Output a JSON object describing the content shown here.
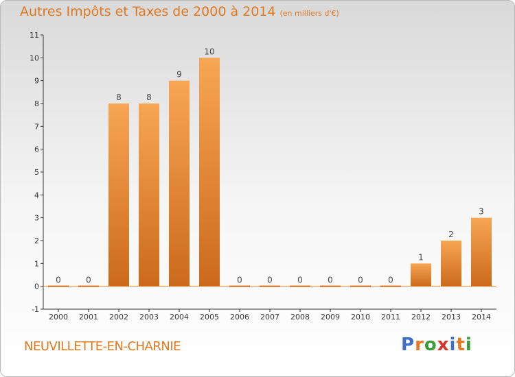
{
  "title": "Autres Impôts et Taxes de 2000 à 2014",
  "unit": "(en milliers d'€)",
  "commune": "NEUVILLETTE-EN-CHARNIE",
  "logo": {
    "letters": [
      "P",
      "r",
      "o",
      "x",
      "i",
      "t",
      "i"
    ],
    "colors": [
      "#3f6fc9",
      "#e87722",
      "#3a9d3a",
      "#d8322f",
      "#3f6fc9",
      "#e87722",
      "#3a9d3a"
    ]
  },
  "colors": {
    "bar": "#e8862e",
    "bar_light": "#f7a654",
    "bar_dark": "#cb6a1a",
    "title": "#e0781e",
    "zero_line": "#e8862e"
  },
  "chart_data": {
    "type": "bar",
    "categories": [
      "2000",
      "2001",
      "2002",
      "2003",
      "2004",
      "2005",
      "2006",
      "2007",
      "2008",
      "2009",
      "2010",
      "2011",
      "2012",
      "2013",
      "2014"
    ],
    "values": [
      0,
      0,
      8,
      8,
      9,
      10,
      0,
      0,
      0,
      0,
      0,
      0,
      1,
      2,
      3
    ],
    "data_labels": [
      "0",
      "0",
      "8",
      "8",
      "9",
      "10",
      "0",
      "0",
      "0",
      "0",
      "0",
      "0",
      "1",
      "2",
      "3"
    ],
    "y_ticks": [
      "-1",
      "0",
      "1",
      "2",
      "3",
      "4",
      "5",
      "6",
      "7",
      "8",
      "9",
      "10",
      "11"
    ],
    "ylim": [
      -1,
      11
    ],
    "title": "Autres Impôts et Taxes de 2000 à 2014",
    "xlabel": "",
    "ylabel": "",
    "grid": false
  }
}
